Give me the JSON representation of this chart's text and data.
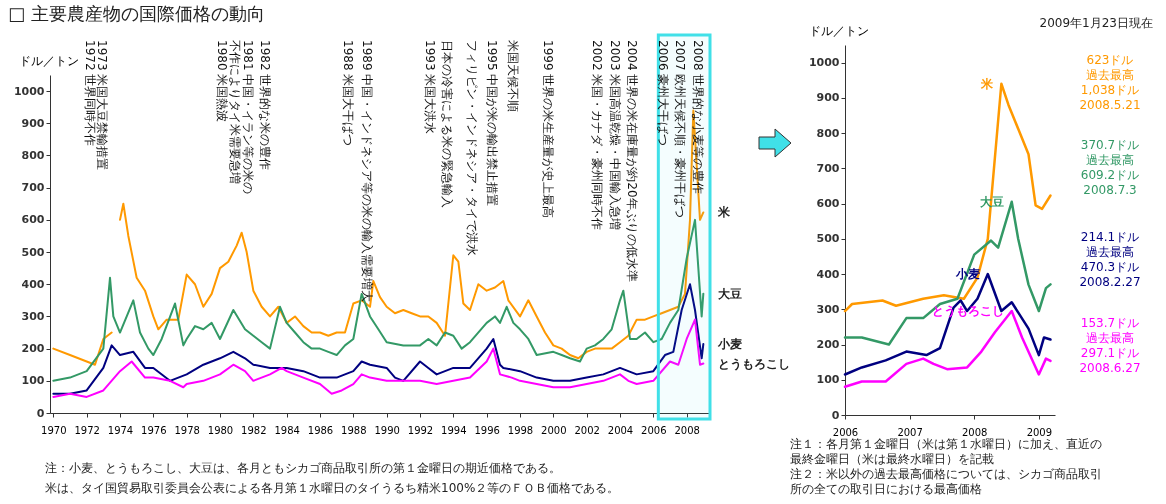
{
  "chart_data": [
    {
      "type": "line",
      "title": "□ 主要農産物の国際価格の動向",
      "ylabel": "ドル／トン",
      "xlim": [
        1969.8,
        2009.4
      ],
      "ylim": [
        0,
        1050
      ],
      "xticks": [
        1970,
        1972,
        1974,
        1976,
        1978,
        1980,
        1982,
        1984,
        1986,
        1988,
        1990,
        1992,
        1994,
        1996,
        1998,
        2000,
        2002,
        2004,
        2006,
        2008
      ],
      "yticks": [
        0,
        100,
        200,
        300,
        400,
        500,
        600,
        700,
        800,
        900,
        1000
      ],
      "grid": false,
      "series": [
        {
          "name": "米",
          "color": "#ff9900",
          "x": [
            1970,
            1971,
            1972,
            1972.5,
            1973,
            1973.5,
            1973.7,
            1974,
            1974.2,
            1974.5,
            1975,
            1975.5,
            1976,
            1976.3,
            1976.8,
            1977.5,
            1978,
            1978.5,
            1979,
            1979.5,
            1980,
            1980.5,
            1981,
            1981.3,
            1981.6,
            1982,
            1982.5,
            1983,
            1983.5,
            1984,
            1984.5,
            1985,
            1985.5,
            1986,
            1986.5,
            1987,
            1987.5,
            1988,
            1988.5,
            1989,
            1989.2,
            1989.6,
            1990,
            1990.5,
            1991,
            1991.5,
            1992,
            1992.5,
            1993,
            1993.5,
            1994,
            1994.3,
            1994.6,
            1995,
            1995.5,
            1996,
            1996.5,
            1997,
            1997.3,
            1998,
            1998.5,
            1999,
            1999.5,
            2000,
            2000.5,
            2001,
            2001.5,
            2002,
            2002.5,
            2003,
            2003.5,
            2004,
            2004.5,
            2005,
            2005.5,
            2006,
            2006.5,
            2007,
            2007.5,
            2007.9,
            2008.2,
            2008.4,
            2008.8,
            2009
          ],
          "values": [
            200,
            180,
            160,
            150,
            230,
            250,
            null,
            600,
            650,
            550,
            420,
            380,
            300,
            260,
            290,
            290,
            430,
            400,
            330,
            370,
            450,
            470,
            520,
            560,
            500,
            380,
            330,
            300,
            330,
            280,
            300,
            270,
            250,
            250,
            240,
            250,
            250,
            340,
            350,
            330,
            410,
            360,
            330,
            310,
            320,
            310,
            300,
            300,
            280,
            240,
            490,
            470,
            340,
            320,
            400,
            380,
            390,
            410,
            350,
            300,
            350,
            300,
            250,
            210,
            200,
            180,
            170,
            190,
            200,
            200,
            200,
            220,
            240,
            290,
            290,
            300,
            310,
            320,
            330,
            370,
            600,
            940,
            600,
            623
          ]
        },
        {
          "name": "大豆",
          "color": "#339966",
          "x": [
            1970,
            1971,
            1972,
            1973,
            1973.4,
            1973.6,
            1974,
            1974.8,
            1975.2,
            1975.7,
            1976,
            1976.5,
            1977.3,
            1977.8,
            1978,
            1978.5,
            1979,
            1979.5,
            1980,
            1980.8,
            1981.5,
            1982,
            1982.5,
            1983,
            1983.6,
            1984,
            1984.5,
            1985,
            1985.5,
            1986,
            1986.5,
            1987,
            1987.5,
            1988,
            1988.5,
            1989,
            1989.5,
            1990,
            1991,
            1992,
            1992.5,
            1993,
            1993.5,
            1994,
            1994.5,
            1995,
            1996,
            1996.5,
            1996.8,
            1997.2,
            1997.6,
            1998,
            1998.5,
            1999,
            2000,
            2000.5,
            2001,
            2001.6,
            2002,
            2002.5,
            2003,
            2003.5,
            2004,
            2004.2,
            2004.6,
            2005,
            2005.5,
            2006,
            2006.5,
            2007,
            2007.5,
            2008,
            2008.5,
            2008.9,
            2009
          ],
          "values": [
            100,
            110,
            130,
            200,
            420,
            300,
            250,
            350,
            250,
            200,
            180,
            230,
            340,
            210,
            230,
            270,
            260,
            280,
            230,
            320,
            260,
            240,
            220,
            200,
            330,
            280,
            250,
            220,
            200,
            200,
            190,
            180,
            210,
            230,
            370,
            300,
            260,
            220,
            210,
            210,
            230,
            210,
            250,
            240,
            200,
            220,
            280,
            300,
            280,
            330,
            280,
            260,
            230,
            180,
            190,
            180,
            170,
            160,
            200,
            210,
            230,
            260,
            350,
            380,
            230,
            230,
            250,
            220,
            230,
            280,
            320,
            480,
            600,
            300,
            370.7
          ]
        },
        {
          "name": "小麦",
          "color": "#000080",
          "x": [
            1970,
            1971,
            1972,
            1973,
            1973.5,
            1974,
            1974.8,
            1975.5,
            1976,
            1977,
            1978,
            1979,
            1980,
            1980.8,
            1981.5,
            1982,
            1983,
            1984,
            1985,
            1986,
            1987,
            1988,
            1988.5,
            1989,
            1990,
            1990.5,
            1991,
            1992,
            1992.5,
            1993,
            1994,
            1995,
            1996,
            1996.4,
            1996.8,
            1997,
            1998,
            1999,
            2000,
            2001,
            2002,
            2003,
            2004,
            2005,
            2006,
            2006.7,
            2007.2,
            2007.7,
            2008.2,
            2008.5,
            2008.9,
            2009
          ],
          "values": [
            60,
            60,
            70,
            140,
            210,
            180,
            190,
            140,
            140,
            100,
            120,
            150,
            170,
            190,
            170,
            150,
            140,
            140,
            130,
            110,
            110,
            130,
            160,
            150,
            140,
            110,
            100,
            160,
            140,
            120,
            140,
            140,
            200,
            230,
            150,
            140,
            130,
            110,
            100,
            100,
            110,
            120,
            140,
            120,
            130,
            180,
            190,
            320,
            400,
            320,
            170,
            214.1
          ]
        },
        {
          "name": "とうもろこし",
          "color": "#ff00ff",
          "x": [
            1970,
            1971,
            1972,
            1973,
            1974,
            1974.7,
            1975.5,
            1976,
            1977,
            1977.8,
            1978,
            1979,
            1980,
            1980.8,
            1981.5,
            1982,
            1983,
            1983.7,
            1984,
            1985,
            1986,
            1986.7,
            1987.3,
            1988,
            1988.5,
            1989,
            1990,
            1991,
            1992,
            1993,
            1994,
            1995,
            1996,
            1996.4,
            1996.8,
            1997.5,
            1998,
            1999,
            2000,
            2001,
            2002,
            2003,
            2004,
            2004.5,
            2005,
            2006,
            2007,
            2007.5,
            2008,
            2008.5,
            2008.8,
            2009
          ],
          "values": [
            50,
            60,
            50,
            70,
            130,
            160,
            110,
            110,
            100,
            80,
            90,
            100,
            120,
            150,
            130,
            100,
            120,
            140,
            130,
            110,
            90,
            60,
            70,
            90,
            120,
            110,
            100,
            100,
            100,
            90,
            100,
            110,
            160,
            200,
            120,
            110,
            100,
            90,
            80,
            80,
            90,
            100,
            120,
            100,
            90,
            100,
            160,
            150,
            230,
            290,
            150,
            153.7
          ]
        }
      ],
      "bands": [
        {
          "axis": "x",
          "from": 2006.3,
          "to": 2009.4,
          "color": "#40e0e8"
        }
      ],
      "annotations": [
        "1972 世界同時不作",
        "1973 米国大豆禁輸措置",
        "1980 米国熱波",
        "不作によりタイ米需要急増",
        "1981 中国・イラン等の米の",
        "1982 世界的な米の豊作",
        "1988 米国大干ばつ",
        "1989 中国・インドネシア等の米の輸入需要増大",
        "1993 米国大洪水",
        "日本の冷害による米の緊急輸入",
        "フィリピン・インドネシア・タイで洪水",
        "1995 中国が米の輸出禁止措置",
        "米国天候不順",
        "1999 世界の米生産量が史上最高",
        "2002 米国・カナダ・豪州同時不作",
        "2003 米国高温乾燥・中国輸入急増",
        "2004 世界の米在庫量が約20年ぶりの低水準",
        "2006 豪州大干ばつ",
        "2007 欧州天候不順・豪州干ばつ",
        "2008 世界的な小麦等の豊作",
        "注：小麦、とうもろこし、大豆は、各月ともシカゴ商品取引所の第１金曜日の期近価格である。",
        "米は、タイ国貿易取引委員会公表による各月第１水曜日のタイうるち精米100%２等のＦＯＢ価格である。"
      ]
    },
    {
      "type": "line",
      "subtitle": "2009年1月23日現在",
      "ylabel": "ドル／トン",
      "xlim": [
        2006,
        2009.25
      ],
      "ylim": [
        0,
        1050
      ],
      "xticks": [
        2006,
        2007,
        2008,
        2009
      ],
      "yticks": [
        0,
        100,
        200,
        300,
        400,
        500,
        600,
        700,
        800,
        900,
        1000
      ],
      "grid": false,
      "series": [
        {
          "name": "米",
          "color": "#ff9900",
          "x": [
            2006,
            2006.11,
            2006.58,
            2006.79,
            2007.21,
            2007.53,
            2007.84,
            2008.05,
            2008.21,
            2008.42,
            2008.53,
            2008.84,
            2008.95,
            2009.05,
            2009.18
          ],
          "values": [
            295,
            315,
            325,
            310,
            330,
            340,
            330,
            390,
            500,
            940,
            880,
            740,
            595,
            585,
            623
          ]
        },
        {
          "name": "大豆",
          "color": "#339966",
          "x": [
            2006,
            2006.26,
            2006.68,
            2006.95,
            2007.21,
            2007.47,
            2007.74,
            2008,
            2008.26,
            2008.37,
            2008.58,
            2008.68,
            2008.84,
            2009,
            2009.11,
            2009.18
          ],
          "values": [
            220,
            220,
            200,
            275,
            275,
            315,
            330,
            455,
            495,
            475,
            605,
            500,
            370,
            295,
            360,
            370.7
          ]
        },
        {
          "name": "小麦",
          "color": "#000080",
          "x": [
            2006,
            2006.26,
            2006.63,
            2006.95,
            2007.26,
            2007.47,
            2007.68,
            2007.79,
            2007.89,
            2008.05,
            2008.21,
            2008.42,
            2008.58,
            2008.84,
            2009,
            2009.08,
            2009.18
          ],
          "values": [
            115,
            135,
            155,
            180,
            170,
            190,
            305,
            325,
            295,
            330,
            400,
            295,
            320,
            245,
            170,
            220,
            214.1
          ]
        },
        {
          "name": "とうもろこし",
          "color": "#ff00ff",
          "x": [
            2006,
            2006.26,
            2006.63,
            2006.95,
            2007.21,
            2007.37,
            2007.58,
            2007.89,
            2008.11,
            2008.32,
            2008.58,
            2008.74,
            2009,
            2009.11,
            2009.18
          ],
          "values": [
            80,
            95,
            95,
            145,
            160,
            145,
            130,
            135,
            180,
            235,
            295,
            220,
            115,
            160,
            153.7
          ]
        }
      ],
      "annotations": [
        "623ドル",
        "過去最高",
        "1,038ドル",
        "2008.5.21",
        "370.7ドル",
        "過去最高",
        "609.2ドル",
        "2008.7.3",
        "214.1ドル",
        "過去最高",
        "470.3ドル",
        "2008.2.27",
        "153.7ドル",
        "過去最高",
        "297.1ドル",
        "2008.6.27",
        "注１：各月第１金曜日（米は第１水曜日）に加え、直近の最終金曜日（米は最終水曜日）を記載",
        "注２：米以外の過去最高価格については、シカゴ商品取引所の全ての取引日における最高価格"
      ]
    }
  ]
}
